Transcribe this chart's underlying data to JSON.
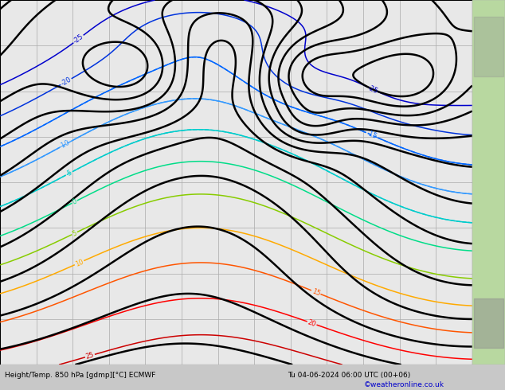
{
  "title_bottom": "Height/Temp. 850 hPa [gdmp][°C] ECMWF",
  "date_str": "Tu 04-06-2024 06:00 UTC (00+06)",
  "credit": "©weatheronline.co.uk",
  "bg_color": "#ffffff",
  "map_bg": "#e8e8e8",
  "grid_color": "#aaaaaa",
  "fig_width": 6.34,
  "fig_height": 4.9,
  "dpi": 100,
  "bottom_bar_color": "#c8c8c8",
  "right_land_color": "#b8d8a0",
  "right_land2_color": "#808080"
}
